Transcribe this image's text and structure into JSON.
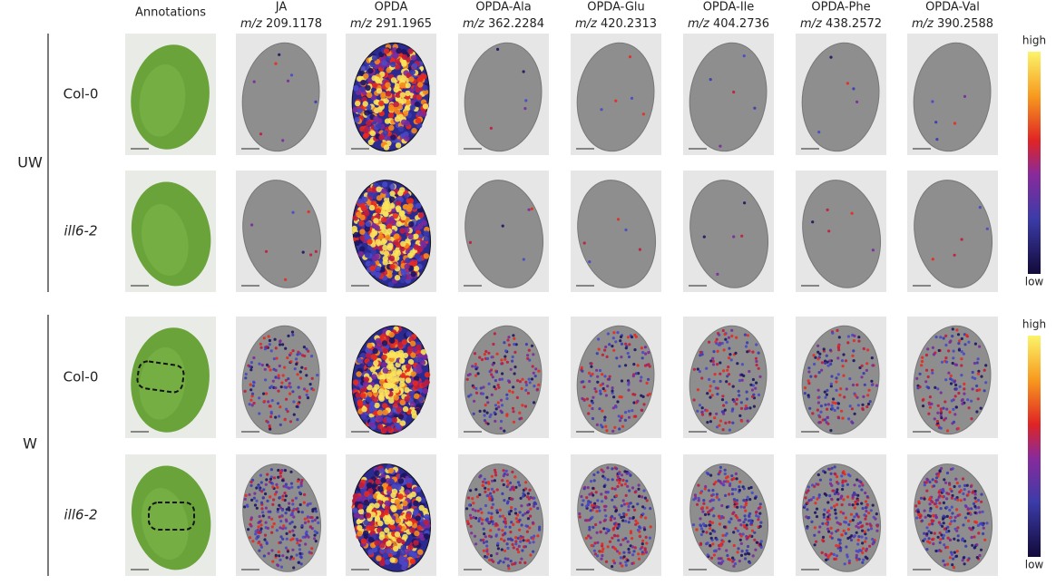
{
  "columns": [
    {
      "name": "Annotations"
    },
    {
      "name": "JA",
      "mz_label": "m/z",
      "mz_value": "209.1178"
    },
    {
      "name": "OPDA",
      "mz_label": "m/z",
      "mz_value": "291.1965"
    },
    {
      "name": "OPDA-Ala",
      "mz_label": "m/z",
      "mz_value": "362.2284"
    },
    {
      "name": "OPDA-Glu",
      "mz_label": "m/z",
      "mz_value": "420.2313"
    },
    {
      "name": "OPDA-Ile",
      "mz_label": "m/z",
      "mz_value": "404.2736"
    },
    {
      "name": "OPDA-Phe",
      "mz_label": "m/z",
      "mz_value": "438.2572"
    },
    {
      "name": "OPDA-Val",
      "mz_label": "m/z",
      "mz_value": "390.2588"
    }
  ],
  "groups": [
    {
      "label": "UW",
      "rows": [
        {
          "label": "Col-0"
        },
        {
          "label": "ill6-2"
        }
      ]
    },
    {
      "label": "W",
      "rows": [
        {
          "label": "Col-0"
        },
        {
          "label": "ill6-2"
        }
      ]
    }
  ],
  "colorbars": [
    {
      "high": "high",
      "low": "low"
    },
    {
      "high": "high",
      "low": "low"
    }
  ]
}
